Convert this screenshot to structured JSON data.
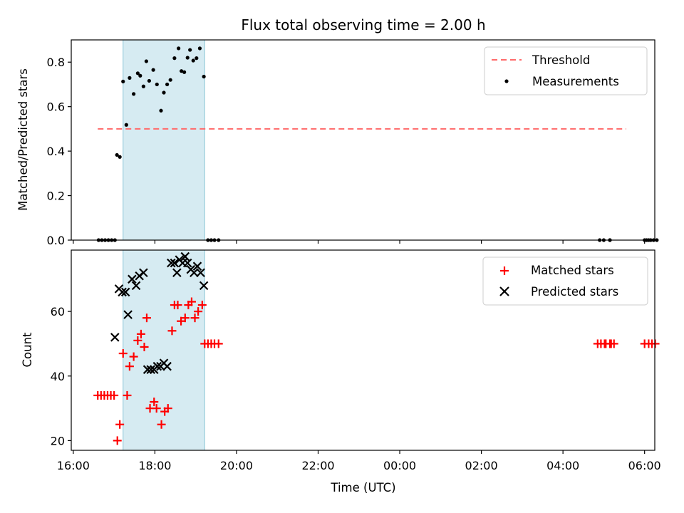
{
  "chart_data": {
    "title": "Flux total observing time = 2.00 h",
    "xlabel": "Time (UTC)",
    "x_tick_labels": [
      "16:00",
      "18:00",
      "20:00",
      "22:00",
      "00:00",
      "02:00",
      "04:00",
      "06:00"
    ],
    "x_tick_hours": [
      16,
      18,
      20,
      22,
      24,
      26,
      28,
      30
    ],
    "xlim_hours": [
      15.95,
      30.25
    ],
    "shaded_span_hours": [
      17.22,
      19.22
    ],
    "colors": {
      "shade": "#add8e6",
      "threshold": "#ff6b6b",
      "measurements": "#000000",
      "matched": "#ff0000",
      "predicted": "#000000"
    },
    "panels": [
      {
        "type": "scatter",
        "ylabel": "Matched/Predicted stars",
        "ylim": [
          0,
          0.9
        ],
        "y_ticks": [
          0.0,
          0.2,
          0.4,
          0.6,
          0.8
        ],
        "y_tick_labels": [
          "0.0",
          "0.2",
          "0.4",
          "0.6",
          "0.8"
        ],
        "legend_position": "top-right",
        "threshold": {
          "name": "Threshold",
          "value": 0.5,
          "x_range_hours": [
            16.6,
            29.55
          ]
        },
        "series": [
          {
            "name": "Measurements",
            "marker": "dot",
            "x": [
              16.62,
              16.7,
              16.78,
              16.86,
              16.94,
              17.02,
              17.07,
              17.14,
              17.22,
              17.3,
              17.38,
              17.48,
              17.58,
              17.64,
              17.72,
              17.79,
              17.86,
              17.96,
              18.05,
              18.15,
              18.22,
              18.3,
              18.38,
              18.48,
              18.58,
              18.65,
              18.72,
              18.8,
              18.86,
              18.94,
              19.02,
              19.1,
              19.2,
              19.3,
              19.38,
              19.46,
              19.56,
              28.9,
              29.0,
              29.15,
              29.15,
              30.0,
              30.05,
              30.1,
              30.15,
              30.22,
              30.3
            ],
            "y": [
              0,
              0,
              0,
              0,
              0,
              0,
              0.383,
              0.374,
              0.713,
              0.518,
              0.729,
              0.657,
              0.75,
              0.739,
              0.691,
              0.804,
              0.716,
              0.765,
              0.7,
              0.582,
              0.663,
              0.7,
              0.72,
              0.818,
              0.862,
              0.76,
              0.755,
              0.82,
              0.855,
              0.807,
              0.818,
              0.862,
              0.735,
              0,
              0,
              0,
              0,
              0,
              0,
              0,
              0,
              0,
              0,
              0,
              0,
              0,
              0
            ]
          }
        ]
      },
      {
        "type": "scatter",
        "ylabel": "Count",
        "ylim": [
          17,
          79
        ],
        "y_ticks": [
          20,
          40,
          60
        ],
        "y_tick_labels": [
          "20",
          "40",
          "60"
        ],
        "legend_position": "top-right",
        "series": [
          {
            "name": "Matched stars",
            "marker": "plus",
            "x": [
              16.6,
              16.68,
              16.76,
              16.84,
              16.92,
              17.0,
              17.08,
              17.14,
              17.22,
              17.32,
              17.38,
              17.48,
              17.58,
              17.66,
              17.74,
              17.8,
              17.88,
              17.98,
              18.04,
              18.16,
              18.24,
              18.32,
              18.42,
              18.48,
              18.56,
              18.64,
              18.74,
              18.82,
              18.9,
              18.98,
              19.06,
              19.16,
              19.22,
              19.3,
              19.38,
              19.46,
              19.56,
              28.85,
              28.93,
              29.02,
              29.15,
              29.05,
              29.18,
              29.25,
              30.0,
              30.1,
              30.18,
              30.26
            ],
            "y": [
              34,
              34,
              34,
              34,
              34,
              34,
              20,
              25,
              47,
              34,
              43,
              46,
              51,
              53,
              49,
              58,
              30,
              32,
              30,
              25,
              29,
              30,
              54,
              62,
              62,
              57,
              58,
              62,
              63,
              58,
              60,
              62,
              50,
              50,
              50,
              50,
              50,
              50,
              50,
              50,
              50,
              50,
              50,
              50,
              50,
              50,
              50,
              50
            ]
          },
          {
            "name": "Predicted stars",
            "marker": "x",
            "x": [
              17.02,
              17.12,
              17.2,
              17.28,
              17.34,
              17.44,
              17.54,
              17.62,
              17.72,
              17.82,
              17.9,
              17.98,
              18.06,
              18.14,
              18.22,
              18.3,
              18.4,
              18.48,
              18.54,
              18.6,
              18.68,
              18.74,
              18.8,
              18.88,
              18.96,
              19.04,
              19.12,
              19.2
            ],
            "y": [
              52,
              67,
              66,
              66,
              59,
              70,
              68,
              71,
              72,
              42,
              42,
              42,
              43,
              43,
              44,
              43,
              75,
              75,
              72,
              76,
              75,
              77,
              75,
              73,
              72,
              74,
              72,
              68
            ]
          }
        ]
      }
    ]
  }
}
